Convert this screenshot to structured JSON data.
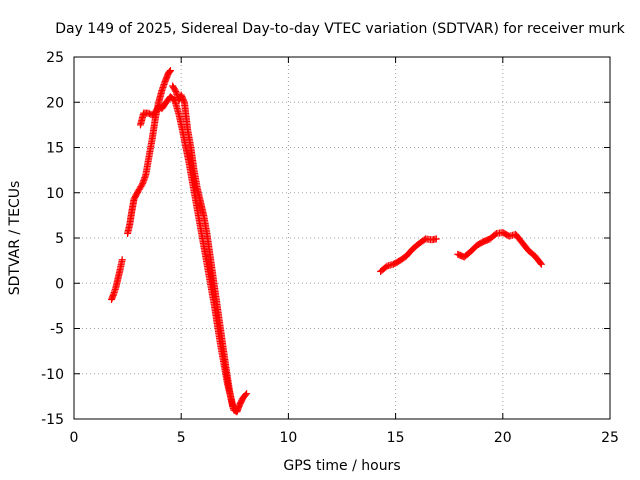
{
  "chart_data": {
    "type": "scatter",
    "title": "Day 149 of 2025, Sidereal Day-to-day VTEC variation (SDTVAR) for receiver murk",
    "xlabel": "GPS time / hours",
    "ylabel": "SDTVAR / TECUs",
    "xlim": [
      0,
      25
    ],
    "ylim": [
      -15,
      25
    ],
    "xticks": [
      0,
      5,
      10,
      15,
      20,
      25
    ],
    "yticks": [
      -15,
      -10,
      -5,
      0,
      5,
      10,
      15,
      20,
      25
    ],
    "xtick_labels": [
      "0",
      "5",
      "10",
      "15",
      "20",
      "25"
    ],
    "ytick_labels": [
      "-15",
      "-10",
      "-5",
      "0",
      "5",
      "10",
      "15",
      "20",
      "25"
    ],
    "grid": true,
    "marker": "+",
    "color": "#ff0000",
    "series": [
      {
        "name": "SDTVAR",
        "segments": [
          [
            [
              1.75,
              -1.8
            ],
            [
              1.85,
              -1.2
            ],
            [
              1.95,
              -0.5
            ],
            [
              2.05,
              0.5
            ],
            [
              2.15,
              1.5
            ],
            [
              2.25,
              2.6
            ]
          ],
          [
            [
              2.5,
              5.5
            ],
            [
              2.6,
              6.5
            ],
            [
              2.7,
              8.0
            ],
            [
              2.8,
              9.3
            ],
            [
              3.0,
              10.2
            ],
            [
              3.2,
              11.0
            ],
            [
              3.35,
              12.0
            ],
            [
              3.5,
              14.0
            ],
            [
              3.65,
              16.0
            ],
            [
              3.8,
              18.3
            ],
            [
              3.95,
              20.0
            ],
            [
              4.1,
              21.3
            ],
            [
              4.25,
              22.3
            ],
            [
              4.4,
              23.2
            ],
            [
              4.5,
              23.5
            ]
          ],
          [
            [
              3.1,
              17.5
            ],
            [
              3.25,
              18.8
            ],
            [
              3.45,
              18.8
            ],
            [
              3.65,
              18.6
            ],
            [
              3.8,
              18.9
            ],
            [
              3.95,
              19.6
            ],
            [
              4.1,
              19.3
            ],
            [
              4.3,
              20.0
            ],
            [
              4.5,
              20.6
            ],
            [
              4.7,
              20.2
            ],
            [
              4.9,
              18.6
            ],
            [
              5.05,
              17.0
            ],
            [
              5.2,
              15.2
            ],
            [
              5.35,
              13.5
            ],
            [
              5.5,
              11.5
            ],
            [
              5.65,
              9.5
            ],
            [
              5.8,
              7.5
            ],
            [
              5.95,
              5.5
            ],
            [
              6.1,
              3.5
            ],
            [
              6.25,
              1.5
            ],
            [
              6.4,
              -0.5
            ],
            [
              6.55,
              -2.5
            ],
            [
              6.7,
              -4.8
            ],
            [
              6.85,
              -7.0
            ],
            [
              7.0,
              -9.0
            ],
            [
              7.15,
              -11.0
            ],
            [
              7.3,
              -12.5
            ],
            [
              7.45,
              -14.0
            ],
            [
              7.6,
              -14.2
            ],
            [
              7.75,
              -13.3
            ],
            [
              7.9,
              -12.6
            ],
            [
              8.05,
              -12.2
            ]
          ],
          [
            [
              4.6,
              21.8
            ],
            [
              4.75,
              21.2
            ],
            [
              4.9,
              20.2
            ],
            [
              5.0,
              20.8
            ],
            [
              5.15,
              20.0
            ],
            [
              5.3,
              17.0
            ],
            [
              5.45,
              15.0
            ],
            [
              5.6,
              12.5
            ],
            [
              5.75,
              10.5
            ],
            [
              5.9,
              9.0
            ],
            [
              6.05,
              7.5
            ],
            [
              6.2,
              5.5
            ],
            [
              6.35,
              3.0
            ],
            [
              6.5,
              0.5
            ],
            [
              6.65,
              -2.0
            ],
            [
              6.8,
              -4.5
            ],
            [
              6.95,
              -7.0
            ],
            [
              7.1,
              -9.5
            ],
            [
              7.25,
              -11.8
            ],
            [
              7.4,
              -13.6
            ]
          ],
          [
            [
              14.3,
              1.3
            ],
            [
              14.6,
              1.9
            ],
            [
              14.9,
              2.1
            ],
            [
              15.2,
              2.5
            ],
            [
              15.5,
              3.0
            ],
            [
              15.8,
              3.8
            ],
            [
              16.1,
              4.4
            ],
            [
              16.4,
              4.9
            ],
            [
              16.7,
              4.8
            ],
            [
              16.9,
              4.9
            ]
          ],
          [
            [
              17.9,
              3.2
            ],
            [
              18.2,
              2.9
            ],
            [
              18.5,
              3.5
            ],
            [
              18.8,
              4.2
            ],
            [
              19.1,
              4.6
            ],
            [
              19.4,
              4.9
            ],
            [
              19.7,
              5.5
            ],
            [
              20.0,
              5.6
            ],
            [
              20.3,
              5.2
            ],
            [
              20.6,
              5.4
            ],
            [
              20.9,
              4.5
            ],
            [
              21.2,
              3.6
            ],
            [
              21.5,
              3.0
            ],
            [
              21.8,
              2.1
            ]
          ]
        ]
      }
    ]
  }
}
